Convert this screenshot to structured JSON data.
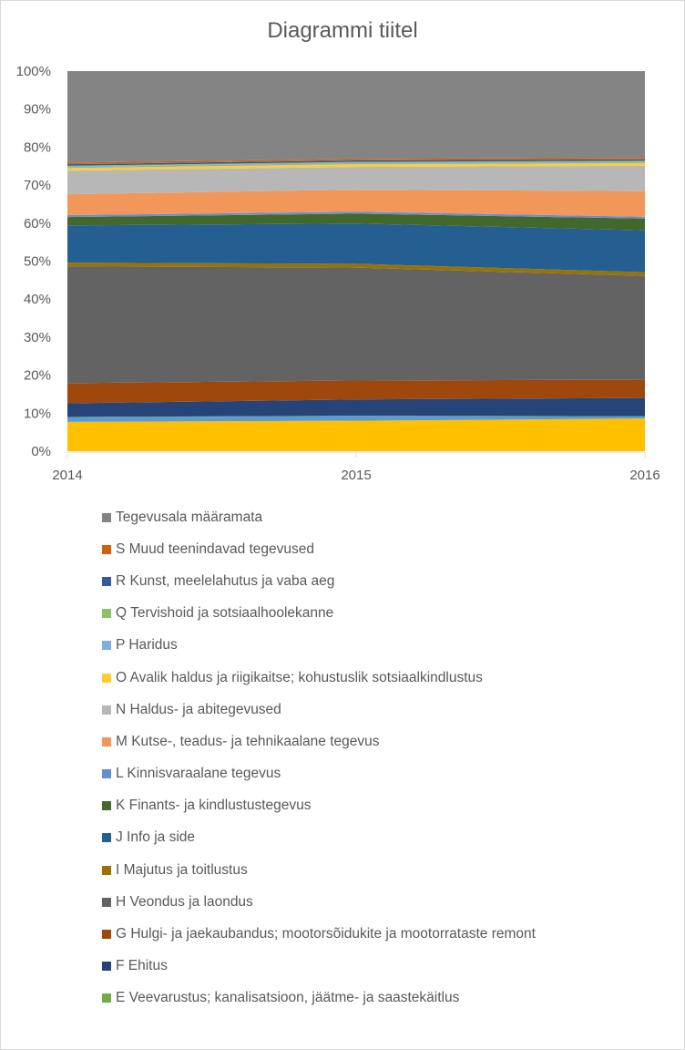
{
  "chart_data": {
    "type": "area",
    "stacking": "percent",
    "title": "Diagrammi tiitel",
    "xlabel": "",
    "ylabel": "",
    "x": [
      "2014",
      "2015",
      "2016"
    ],
    "ylim": [
      0,
      100
    ],
    "yticks": [
      "0%",
      "10%",
      "20%",
      "30%",
      "40%",
      "50%",
      "60%",
      "70%",
      "80%",
      "90%",
      "100%"
    ],
    "grid": false,
    "legend_position": "bottom",
    "series": [
      {
        "name": "",
        "color": "#FFC000",
        "values": [
          7.7,
          8.0,
          8.6
        ],
        "in_legend": false
      },
      {
        "name": "",
        "color": "#5B9BD5",
        "values": [
          1.2,
          1.2,
          0.5
        ],
        "in_legend": false
      },
      {
        "name": "E Veevarustus; kanalisatsioon, jäätme- ja saastekäitlus",
        "color": "#70AD47",
        "values": [
          0.1,
          0.1,
          0.1
        ]
      },
      {
        "name": "F Ehitus",
        "color": "#264478",
        "values": [
          3.6,
          4.3,
          4.8
        ]
      },
      {
        "name": "G Hulgi- ja jaekaubandus; mootorsõidukite ja mootorrataste remont",
        "color": "#9E480E",
        "values": [
          5.3,
          5.0,
          4.8
        ]
      },
      {
        "name": "H Veondus ja laondus",
        "color": "#636363",
        "values": [
          30.7,
          29.7,
          27.3
        ]
      },
      {
        "name": "I Majutus ja toitlustus",
        "color": "#997300",
        "values": [
          1.0,
          1.0,
          1.0
        ]
      },
      {
        "name": "J Info ja side",
        "color": "#255E91",
        "values": [
          9.8,
          10.6,
          11.0
        ]
      },
      {
        "name": "K Finants- ja kindlustustegevus",
        "color": "#43682B",
        "values": [
          2.2,
          2.6,
          3.1
        ]
      },
      {
        "name": "L Kinnisvaraalane tegevus",
        "color": "#698ED0",
        "values": [
          0.5,
          0.5,
          0.5
        ]
      },
      {
        "name": "M Kutse-, teadus- ja tehnikaalane tegevus",
        "color": "#F1975A",
        "values": [
          5.5,
          5.8,
          6.7
        ]
      },
      {
        "name": "N Haldus- ja abitegevused",
        "color": "#B7B7B7",
        "values": [
          6.2,
          6.0,
          6.7
        ]
      },
      {
        "name": "O Avalik haldus ja riigikaitse; kohustuslik sotsiaalkindlustus",
        "color": "#FFCD33",
        "values": [
          0.7,
          0.7,
          0.7
        ]
      },
      {
        "name": "P Haridus",
        "color": "#7CAFDD",
        "values": [
          0.3,
          0.3,
          0.3
        ]
      },
      {
        "name": "Q Tervishoid ja sotsiaalhoolekanne",
        "color": "#8CC168",
        "values": [
          0.3,
          0.3,
          0.3
        ]
      },
      {
        "name": "R Kunst, meelelahutus ja vaba aeg",
        "color": "#335AA1",
        "values": [
          0.4,
          0.4,
          0.4
        ]
      },
      {
        "name": "S Muud teenindavad tegevused",
        "color": "#D26012",
        "values": [
          0.4,
          0.4,
          0.4
        ]
      },
      {
        "name": "Tegevusala määramata",
        "color": "#848484",
        "values": [
          24.1,
          23.1,
          22.8
        ]
      }
    ]
  }
}
